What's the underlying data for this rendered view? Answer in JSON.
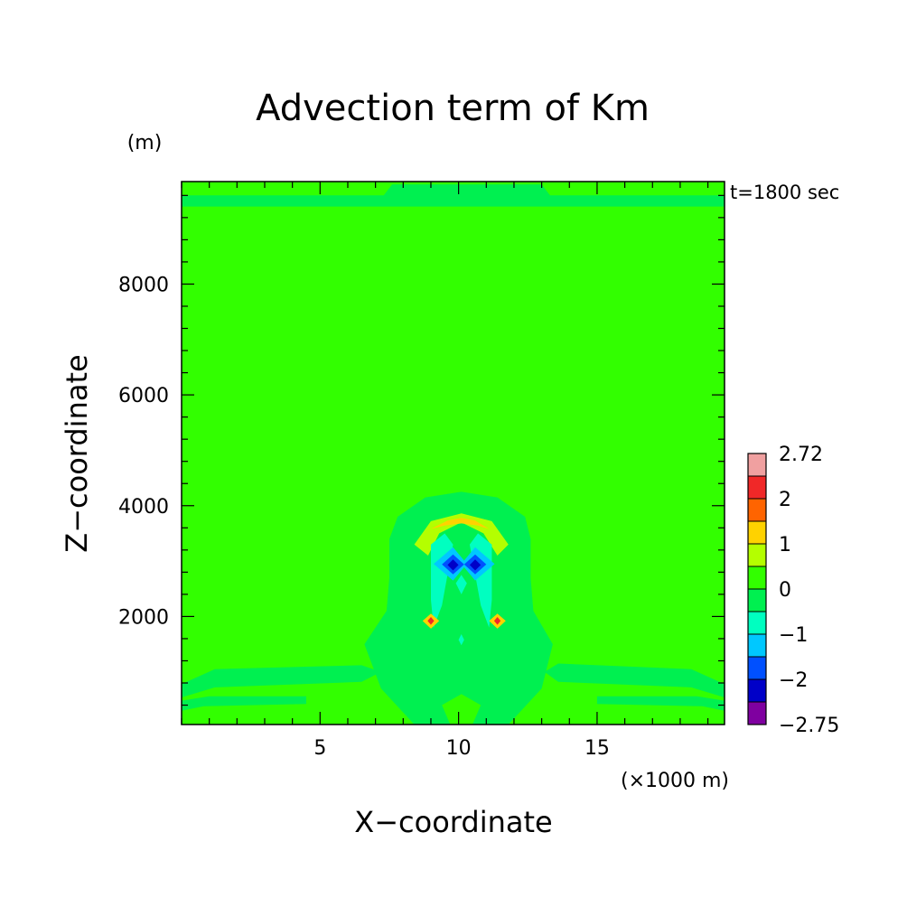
{
  "chart_data": {
    "type": "heatmap",
    "title": "Advection term of Km",
    "xlabel": "X−coordinate",
    "ylabel": "Z−coordinate",
    "x_unit": "(×1000 m)",
    "y_unit": "(m)",
    "time_label": "t=1800 sec",
    "xlim": [
      0,
      19.6
    ],
    "ylim": [
      50,
      9850
    ],
    "x_ticks": [
      {
        "value": 5,
        "label": "5"
      },
      {
        "value": 10,
        "label": "10"
      },
      {
        "value": 15,
        "label": "15"
      }
    ],
    "y_ticks": [
      {
        "value": 2000,
        "label": "2000"
      },
      {
        "value": 4000,
        "label": "4000"
      },
      {
        "value": 6000,
        "label": "6000"
      },
      {
        "value": 8000,
        "label": "8000"
      }
    ],
    "x_minor_step": 1,
    "y_minor_step": 400,
    "colorbar": {
      "min_label": "−2.75",
      "max_label": "2.72",
      "levels": [
        -2.75,
        -2.5,
        -2,
        -1.5,
        -1,
        -0.5,
        0,
        0.5,
        1,
        1.5,
        2,
        2.5,
        2.72
      ],
      "colors": [
        "#7f00a0",
        "#0000c8",
        "#0050ff",
        "#00c8ff",
        "#00ffc0",
        "#00f050",
        "#32ff00",
        "#b4ff00",
        "#ffd200",
        "#ff6400",
        "#f02828",
        "#f0a0a0"
      ],
      "tick_labels": [
        {
          "value": -2.75,
          "label": "−2.75"
        },
        {
          "value": -2,
          "label": "−2"
        },
        {
          "value": -1,
          "label": "−1"
        },
        {
          "value": 0,
          "label": "0"
        },
        {
          "value": 1,
          "label": "1"
        },
        {
          "value": 2,
          "label": "2"
        },
        {
          "value": 2.72,
          "label": "2.72"
        }
      ]
    },
    "background_value": 0.25,
    "features": [
      {
        "name": "upper-boundary-band",
        "value": -0.25,
        "polygon": [
          [
            0,
            9400
          ],
          [
            0,
            9600
          ],
          [
            7.3,
            9600
          ],
          [
            7.6,
            9800
          ],
          [
            13.0,
            9800
          ],
          [
            13.3,
            9600
          ],
          [
            19.6,
            9600
          ],
          [
            19.6,
            9400
          ]
        ]
      },
      {
        "name": "left-low-band",
        "value": -0.25,
        "polygon": [
          [
            0,
            780
          ],
          [
            1.2,
            1050
          ],
          [
            6.5,
            1120
          ],
          [
            7.2,
            1000
          ],
          [
            6.5,
            820
          ],
          [
            1.2,
            720
          ],
          [
            0,
            540
          ]
        ]
      },
      {
        "name": "right-low-band",
        "value": -0.25,
        "polygon": [
          [
            19.6,
            780
          ],
          [
            18.4,
            1050
          ],
          [
            13.6,
            1150
          ],
          [
            13.1,
            1000
          ],
          [
            13.6,
            820
          ],
          [
            18.4,
            720
          ],
          [
            19.6,
            540
          ]
        ]
      },
      {
        "name": "left-bottom-strip",
        "value": -0.25,
        "polygon": [
          [
            0,
            300
          ],
          [
            0,
            480
          ],
          [
            1.0,
            560
          ],
          [
            4.5,
            560
          ],
          [
            4.5,
            420
          ],
          [
            0.8,
            380
          ]
        ]
      },
      {
        "name": "right-bottom-strip",
        "value": -0.25,
        "polygon": [
          [
            19.6,
            300
          ],
          [
            19.6,
            480
          ],
          [
            18.6,
            560
          ],
          [
            15.0,
            560
          ],
          [
            15.0,
            420
          ],
          [
            18.8,
            380
          ]
        ]
      },
      {
        "name": "central-plume",
        "value": -0.25,
        "polygon": [
          [
            8.4,
            50
          ],
          [
            7.2,
            700
          ],
          [
            6.6,
            1500
          ],
          [
            7.4,
            2100
          ],
          [
            7.5,
            2700
          ],
          [
            7.5,
            3400
          ],
          [
            7.8,
            3800
          ],
          [
            8.8,
            4150
          ],
          [
            10.1,
            4250
          ],
          [
            11.4,
            4150
          ],
          [
            12.4,
            3800
          ],
          [
            12.6,
            3400
          ],
          [
            12.6,
            2700
          ],
          [
            12.7,
            2100
          ],
          [
            13.4,
            1500
          ],
          [
            13.0,
            700
          ],
          [
            11.8,
            50
          ],
          [
            10.5,
            50
          ],
          [
            10.8,
            400
          ],
          [
            10.1,
            600
          ],
          [
            9.4,
            400
          ],
          [
            9.7,
            50
          ]
        ]
      },
      {
        "name": "cap-outer",
        "value": 0.75,
        "polygon": [
          [
            8.9,
            3100
          ],
          [
            9.3,
            3500
          ],
          [
            10.1,
            3700
          ],
          [
            10.9,
            3500
          ],
          [
            11.4,
            3100
          ],
          [
            11.8,
            3300
          ],
          [
            11.2,
            3720
          ],
          [
            10.1,
            3860
          ],
          [
            9.0,
            3720
          ],
          [
            8.4,
            3300
          ]
        ]
      },
      {
        "name": "cap-inner",
        "value": 1.25,
        "polygon": [
          [
            9.0,
            3580
          ],
          [
            9.6,
            3730
          ],
          [
            10.1,
            3780
          ],
          [
            10.6,
            3730
          ],
          [
            11.1,
            3580
          ],
          [
            10.7,
            3640
          ],
          [
            10.1,
            3680
          ],
          [
            9.5,
            3640
          ]
        ]
      },
      {
        "name": "stem-left",
        "value": -0.75,
        "polygon": [
          [
            9.0,
            3300
          ],
          [
            9.5,
            3500
          ],
          [
            9.8,
            3300
          ],
          [
            9.4,
            2200
          ],
          [
            9.1,
            1800
          ],
          [
            9.0,
            2300
          ]
        ]
      },
      {
        "name": "stem-right",
        "value": -0.75,
        "polygon": [
          [
            11.2,
            3300
          ],
          [
            10.7,
            3500
          ],
          [
            10.4,
            3300
          ],
          [
            10.8,
            2200
          ],
          [
            11.1,
            1800
          ],
          [
            11.2,
            2300
          ]
        ]
      },
      {
        "name": "stem-mid",
        "value": -0.75,
        "polygon": [
          [
            9.9,
            2600
          ],
          [
            10.1,
            2750
          ],
          [
            10.3,
            2600
          ],
          [
            10.1,
            2400
          ]
        ]
      },
      {
        "name": "eye-left-outer",
        "value": -1.25,
        "polygon": [
          [
            9.1,
            2950
          ],
          [
            9.8,
            3250
          ],
          [
            10.3,
            2950
          ],
          [
            9.8,
            2650
          ]
        ]
      },
      {
        "name": "eye-right-outer",
        "value": -1.25,
        "polygon": [
          [
            10.1,
            2950
          ],
          [
            10.6,
            3250
          ],
          [
            11.3,
            2950
          ],
          [
            10.6,
            2650
          ]
        ]
      },
      {
        "name": "eye-left-mid",
        "value": -1.75,
        "polygon": [
          [
            9.4,
            2940
          ],
          [
            9.8,
            3120
          ],
          [
            10.2,
            2940
          ],
          [
            9.8,
            2760
          ]
        ]
      },
      {
        "name": "eye-right-mid",
        "value": -1.75,
        "polygon": [
          [
            10.2,
            2940
          ],
          [
            10.6,
            3120
          ],
          [
            11.0,
            2940
          ],
          [
            10.6,
            2760
          ]
        ]
      },
      {
        "name": "eye-left-core",
        "value": -2.25,
        "polygon": [
          [
            9.6,
            2930
          ],
          [
            9.8,
            3030
          ],
          [
            10.0,
            2930
          ],
          [
            9.8,
            2830
          ]
        ]
      },
      {
        "name": "eye-right-core",
        "value": -2.25,
        "polygon": [
          [
            10.4,
            2930
          ],
          [
            10.6,
            3030
          ],
          [
            10.8,
            2930
          ],
          [
            10.6,
            2830
          ]
        ]
      },
      {
        "name": "dot-left-outer",
        "value": 1.25,
        "polygon": [
          [
            8.7,
            1920
          ],
          [
            9.0,
            2050
          ],
          [
            9.3,
            1920
          ],
          [
            9.0,
            1780
          ]
        ]
      },
      {
        "name": "dot-left-core",
        "value": 2.25,
        "polygon": [
          [
            8.88,
            1920
          ],
          [
            9.0,
            1990
          ],
          [
            9.12,
            1920
          ],
          [
            9.0,
            1850
          ]
        ]
      },
      {
        "name": "dot-right-outer",
        "value": 1.25,
        "polygon": [
          [
            11.1,
            1920
          ],
          [
            11.4,
            2050
          ],
          [
            11.7,
            1920
          ],
          [
            11.4,
            1780
          ]
        ]
      },
      {
        "name": "dot-right-core",
        "value": 2.25,
        "polygon": [
          [
            11.28,
            1920
          ],
          [
            11.4,
            1990
          ],
          [
            11.52,
            1920
          ],
          [
            11.4,
            1850
          ]
        ]
      },
      {
        "name": "center-speck",
        "value": -0.75,
        "polygon": [
          [
            10.0,
            1580
          ],
          [
            10.1,
            1680
          ],
          [
            10.2,
            1580
          ],
          [
            10.1,
            1480
          ]
        ]
      }
    ]
  }
}
